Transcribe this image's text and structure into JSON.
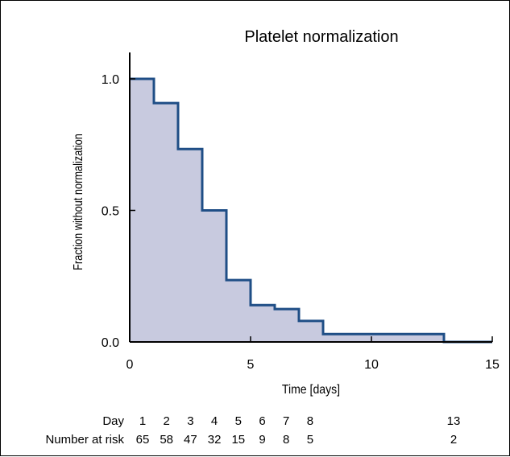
{
  "chart_data": {
    "type": "line",
    "subtype": "kaplan-meier-step",
    "title": "Platelet normalization",
    "xlabel": "Time [days]",
    "ylabel": "Fraction without normalization",
    "xlim": [
      0,
      15
    ],
    "ylim": [
      0,
      1.1
    ],
    "x_ticks": [
      0,
      5,
      10,
      15
    ],
    "y_ticks": [
      0.0,
      0.5,
      1.0
    ],
    "x_tick_labels": [
      "0",
      "5",
      "10",
      "15"
    ],
    "y_tick_labels": [
      "0.0",
      "0.5",
      "1.0"
    ],
    "grid": false,
    "legend": "none",
    "series": [
      {
        "x": [
          0,
          1,
          2,
          3,
          4,
          5,
          6,
          7,
          8,
          13
        ],
        "values": [
          1.0,
          0.908,
          0.733,
          0.5,
          0.235,
          0.14,
          0.125,
          0.08,
          0.03,
          0.0
        ]
      }
    ],
    "colors": {
      "line": "#1f4e86",
      "fill": "#c8cadf"
    },
    "risk_table": {
      "day_label": "Day",
      "risk_label": "Number at risk",
      "days": [
        "1",
        "2",
        "3",
        "4",
        "5",
        "6",
        "7",
        "8",
        "13"
      ],
      "day_values": [
        1,
        2,
        3,
        4,
        5,
        6,
        7,
        8,
        13
      ],
      "at_risk": [
        "65",
        "58",
        "47",
        "32",
        "15",
        "9",
        "8",
        "5",
        "2"
      ]
    }
  }
}
